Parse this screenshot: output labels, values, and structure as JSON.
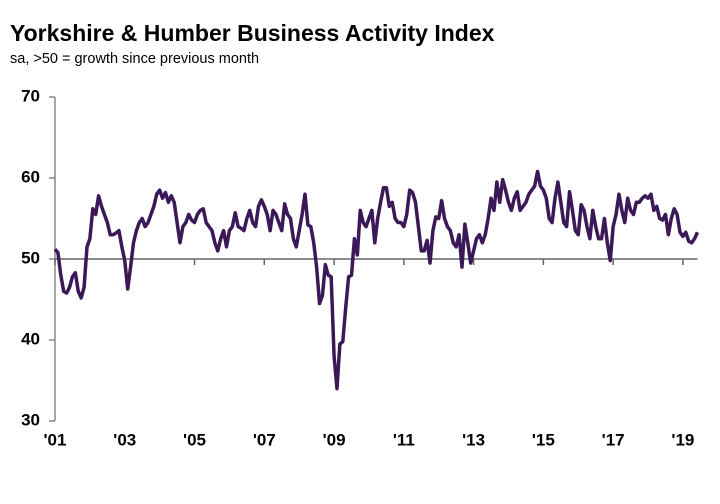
{
  "chart_data": {
    "type": "line",
    "title": "Yorkshire & Humber Business Activity Index",
    "subtitle": "sa, >50 = growth since previous month",
    "categories": [
      "'01",
      null,
      null,
      null,
      null,
      null,
      null,
      null,
      null,
      null,
      null,
      null,
      null,
      null,
      null,
      null,
      null,
      null,
      null,
      null,
      null,
      null,
      null,
      null,
      "'03",
      null,
      null,
      null,
      null,
      null,
      null,
      null,
      null,
      null,
      null,
      null,
      null,
      null,
      null,
      null,
      null,
      null,
      null,
      null,
      null,
      null,
      null,
      null,
      "'05",
      null,
      null,
      null,
      null,
      null,
      null,
      null,
      null,
      null,
      null,
      null,
      null,
      null,
      null,
      null,
      null,
      null,
      null,
      null,
      null,
      null,
      null,
      null,
      "'07",
      null,
      null,
      null,
      null,
      null,
      null,
      null,
      null,
      null,
      null,
      null,
      null,
      null,
      null,
      null,
      null,
      null,
      null,
      null,
      null,
      null,
      null,
      null,
      "'09",
      null,
      null,
      null,
      null,
      null,
      null,
      null,
      null,
      null,
      null,
      null,
      null,
      null,
      null,
      null,
      null,
      null,
      null,
      null,
      null,
      null,
      null,
      null,
      "'11",
      null,
      null,
      null,
      null,
      null,
      null,
      null,
      null,
      null,
      null,
      null,
      null,
      null,
      null,
      null,
      null,
      null,
      null,
      null,
      null,
      null,
      null,
      null,
      "'13",
      null,
      null,
      null,
      null,
      null,
      null,
      null,
      null,
      null,
      null,
      null,
      null,
      null,
      null,
      null,
      null,
      null,
      null,
      null,
      null,
      null,
      null,
      null,
      "'15",
      null,
      null,
      null,
      null,
      null,
      null,
      null,
      null,
      null,
      null,
      null,
      null,
      null,
      null,
      null,
      null,
      null,
      null,
      null,
      null,
      null,
      null,
      null,
      "'17",
      null,
      null,
      null,
      null,
      null,
      null,
      null,
      null,
      null,
      null,
      null,
      null,
      null,
      null,
      null,
      null,
      null,
      null,
      null,
      null,
      null,
      null,
      null,
      "'19",
      null,
      null,
      null,
      null,
      null
    ],
    "series": [
      {
        "name": "Business Activity Index",
        "color": "#3b1858",
        "values": [
          51.2,
          50.8,
          48,
          46,
          45.8,
          46.5,
          47.8,
          48.3,
          46,
          45.2,
          46.5,
          51.5,
          52.5,
          56.2,
          55.5,
          57.8,
          56.5,
          55.5,
          54.5,
          53,
          53,
          53.2,
          53.5,
          51.5,
          49.8,
          46.3,
          49,
          52,
          53.5,
          54.5,
          55,
          54,
          54.5,
          55.5,
          56.5,
          58,
          58.5,
          57.5,
          58.2,
          57,
          57.8,
          57,
          54.5,
          52,
          54,
          54.5,
          55.5,
          54.8,
          54.5,
          55.5,
          56,
          56.2,
          54.5,
          54,
          53.5,
          52,
          51,
          52.5,
          53.5,
          51.5,
          53.5,
          54,
          55.7,
          54,
          53.8,
          53.5,
          55,
          56,
          54.5,
          54,
          56.5,
          57.3,
          56.5,
          55.5,
          53.5,
          56,
          55.5,
          54.5,
          53.5,
          56.8,
          55.5,
          55,
          52.5,
          51.5,
          53.5,
          55.5,
          58,
          54.2,
          54,
          52,
          49,
          44.5,
          45.5,
          49.3,
          48,
          47.8,
          38,
          34,
          39.5,
          39.8,
          44,
          47.8,
          48,
          52.5,
          50.5,
          56,
          54.5,
          54,
          55,
          56,
          52,
          55,
          57,
          58.8,
          58.8,
          56.5,
          57,
          55,
          54.5,
          54.5,
          54,
          55.5,
          58.5,
          58.2,
          57,
          54,
          51,
          51,
          52.3,
          49.5,
          53.5,
          55.2,
          55,
          57.2,
          55,
          54,
          53.5,
          52,
          51.5,
          53,
          49,
          54.3,
          52,
          49.5,
          51,
          52.5,
          53,
          52,
          53,
          55,
          57.5,
          56,
          59.5,
          57,
          59.8,
          58.5,
          57,
          56,
          57.5,
          58.3,
          56,
          56.5,
          57,
          58,
          58.5,
          59,
          60.8,
          59,
          58.5,
          57.5,
          55,
          54.5,
          57.5,
          59.5,
          57,
          54.5,
          54,
          58.3,
          56,
          53.5,
          53,
          56.7,
          56,
          54,
          52.5,
          56,
          54,
          52.5,
          52.5,
          55,
          52,
          49.8,
          54,
          55.5,
          58,
          56,
          54.5,
          57.5,
          56,
          55.5,
          57,
          57,
          57.5,
          57.8,
          57.5,
          58,
          56,
          56.5,
          55,
          54.8,
          55.5,
          53,
          55,
          56.2,
          55.5,
          53.3,
          52.8,
          53.3,
          52.2,
          52,
          52.5,
          53.3
        ]
      }
    ],
    "ylim": [
      30,
      70
    ],
    "yticks": [
      30,
      40,
      50,
      60,
      70
    ],
    "x_axis_crosses": 50,
    "grid": false
  }
}
